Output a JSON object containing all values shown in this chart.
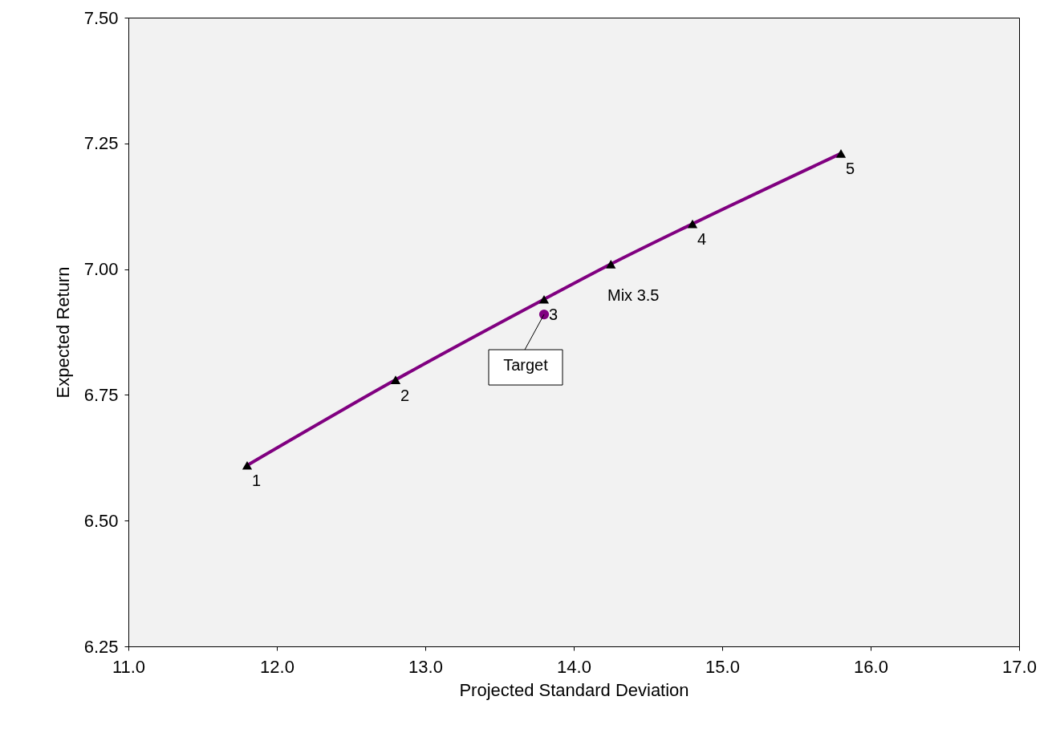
{
  "chart_data": {
    "type": "line",
    "xlabel": "Projected Standard Deviation",
    "ylabel": "Expected Return",
    "series": [
      {
        "color": "#800080",
        "marker": "none",
        "x": [
          11.8,
          12.8,
          13.8,
          14.25,
          14.8,
          15.8
        ],
        "values": [
          6.61,
          6.78,
          6.94,
          7.01,
          7.09,
          7.23
        ]
      },
      {
        "type": "scatter",
        "color": "#000000",
        "marker": "triangle",
        "x": [
          11.8,
          12.8,
          13.8,
          14.25,
          14.8,
          15.8
        ],
        "values": [
          6.61,
          6.78,
          6.94,
          7.01,
          7.09,
          7.23
        ]
      },
      {
        "type": "scatter",
        "color": "#800080",
        "marker": "circle",
        "x": [
          13.8
        ],
        "values": [
          6.91
        ]
      }
    ],
    "annotations": [
      {
        "text": "Target",
        "x": 13.8,
        "y": 6.91
      },
      {
        "text": "1",
        "x": 11.8,
        "y": 6.61
      },
      {
        "text": "2",
        "x": 12.8,
        "y": 6.78
      },
      {
        "text": "3",
        "x": 13.8,
        "y": 6.94
      },
      {
        "text": "Mix 3.5",
        "x": 14.25,
        "y": 7.01
      },
      {
        "text": "4",
        "x": 14.8,
        "y": 7.09
      },
      {
        "text": "5",
        "x": 15.8,
        "y": 7.23
      }
    ],
    "xlim": [
      11.0,
      17.0
    ],
    "xticks": [
      {
        "value": 11,
        "label": "11.0"
      },
      {
        "value": 12,
        "label": "12.0"
      },
      {
        "value": 13,
        "label": "13.0"
      },
      {
        "value": 14,
        "label": "14.0"
      },
      {
        "value": 15,
        "label": "15.0"
      },
      {
        "value": 16,
        "label": "16.0"
      },
      {
        "value": 17,
        "label": "17.0"
      }
    ],
    "ylim": [
      6.25,
      7.5
    ],
    "yticks": [
      6.25,
      {
        "value": 6.5,
        "label": "6.50"
      },
      6.75,
      {
        "value": 7.0,
        "label": "7.00"
      },
      7.25,
      {
        "value": 7.5,
        "label": "7.50"
      }
    ],
    "grid": false
  }
}
